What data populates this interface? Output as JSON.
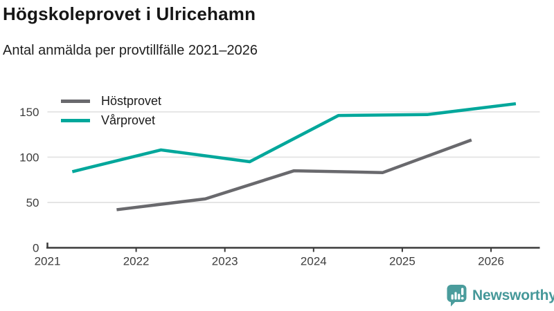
{
  "header": {
    "title": "Högskoleprovet i Ulricehamn",
    "subtitle": "Antal anmälda per provtillfälle 2021–2026"
  },
  "chart_data": {
    "type": "line",
    "title": "Högskoleprovet i Ulricehamn",
    "subtitle": "Antal anmälda per provtillfälle 2021–2026",
    "xlabel": "",
    "ylabel": "",
    "xlim": [
      2021,
      2026.55
    ],
    "ylim": [
      0,
      165
    ],
    "xtick_values": [
      2021,
      2022,
      2023,
      2024,
      2025,
      2026
    ],
    "xtick_labels": [
      "2021",
      "2022",
      "2023",
      "2024",
      "2025",
      "2026"
    ],
    "ytick_values": [
      0,
      50,
      100,
      150
    ],
    "ytick_labels": [
      "0",
      "50",
      "100",
      "150"
    ],
    "grid": true,
    "legend_position": "top-left",
    "series": [
      {
        "name": "Höstprovet",
        "color": "#69696d",
        "x": [
          2021.78,
          2022.78,
          2023.78,
          2024.78,
          2025.78
        ],
        "y": [
          42,
          54,
          85,
          83,
          119
        ]
      },
      {
        "name": "Vårprovet",
        "color": "#00a79b",
        "x": [
          2021.28,
          2022.28,
          2023.28,
          2024.28,
          2025.28,
          2026.28
        ],
        "y": [
          84,
          108,
          95,
          146,
          147,
          159
        ]
      }
    ],
    "style": {
      "grid_color": "#e3e3e3",
      "axis_color": "#3a3a3a",
      "tick_label_color": "#3d3d3d",
      "line_width": 4.5
    }
  },
  "footer": {
    "brand": "Newsworthy",
    "brand_color": "#459899",
    "logo_icon": "speech-bubble-bar-chart"
  }
}
